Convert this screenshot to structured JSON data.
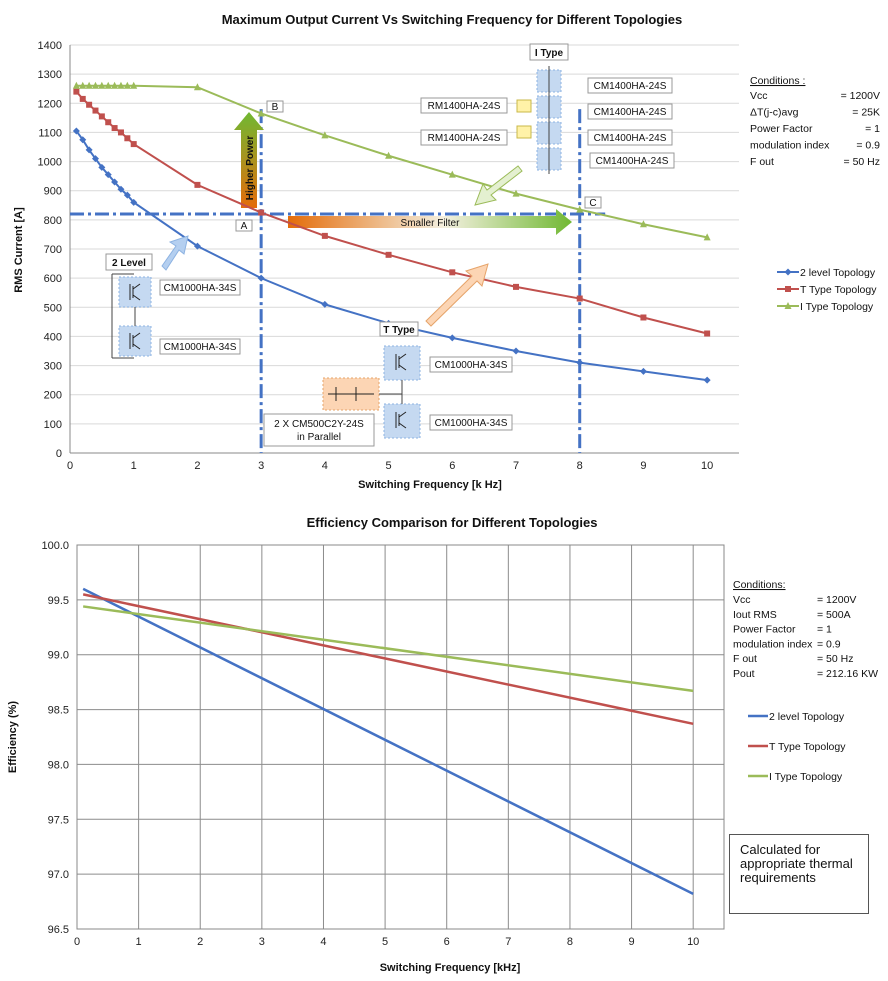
{
  "colors": {
    "two_level": "#4472C4",
    "t_type": "#C0504D",
    "i_type": "#9BBB59",
    "guide": "#4472C4"
  },
  "chart_data": [
    {
      "type": "line",
      "title": "Maximum Output Current Vs Switching Frequency for Different Topologies",
      "xlabel": "Switching Frequency [k Hz]",
      "ylabel": "RMS Current [A]",
      "xlim": [
        0,
        10.5
      ],
      "ylim": [
        0,
        1400
      ],
      "x_ticks": [
        0,
        1,
        2,
        3,
        4,
        5,
        6,
        7,
        8,
        9,
        10
      ],
      "y_ticks": [
        0,
        100,
        200,
        300,
        400,
        500,
        600,
        700,
        800,
        900,
        1000,
        1100,
        1200,
        1300,
        1400
      ],
      "grid": "horizontal",
      "legend_position": "right",
      "series": [
        {
          "name": "2 level Topology",
          "marker": "diamond",
          "x": [
            0.1,
            0.2,
            0.3,
            0.4,
            0.5,
            0.6,
            0.7,
            0.8,
            0.9,
            1,
            2,
            3,
            4,
            5,
            6,
            7,
            8,
            9,
            10
          ],
          "values": [
            1105,
            1075,
            1040,
            1010,
            980,
            955,
            930,
            905,
            885,
            860,
            710,
            600,
            510,
            445,
            395,
            350,
            310,
            280,
            250
          ]
        },
        {
          "name": "T Type Topology",
          "marker": "square",
          "x": [
            0.1,
            0.2,
            0.3,
            0.4,
            0.5,
            0.6,
            0.7,
            0.8,
            0.9,
            1,
            2,
            3,
            4,
            5,
            6,
            7,
            8,
            9,
            10
          ],
          "values": [
            1240,
            1215,
            1195,
            1175,
            1155,
            1135,
            1115,
            1100,
            1080,
            1060,
            920,
            825,
            745,
            680,
            620,
            570,
            530,
            465,
            410
          ]
        },
        {
          "name": "I Type Topology",
          "marker": "triangle",
          "x": [
            0.1,
            0.2,
            0.3,
            0.4,
            0.5,
            0.6,
            0.7,
            0.8,
            0.9,
            1,
            2,
            3,
            4,
            5,
            6,
            7,
            8,
            9,
            10
          ],
          "values": [
            1260,
            1260,
            1260,
            1260,
            1260,
            1260,
            1260,
            1260,
            1260,
            1260,
            1255,
            1165,
            1090,
            1020,
            955,
            890,
            835,
            785,
            740
          ]
        }
      ],
      "guide_lines": {
        "horizontal_y": 820,
        "vertical_x": [
          3,
          8
        ]
      },
      "point_labels": [
        "A",
        "B",
        "C"
      ],
      "arrow_labels": {
        "higher_power": "Higher Power",
        "smaller_filter": "Smaller Filter"
      },
      "conditions": {
        "title": "Conditions :",
        "rows": [
          [
            "Vcc",
            "= 1200V"
          ],
          [
            "ΔT(j-c)avg",
            "= 25K"
          ],
          [
            "Power Factor",
            "= 1"
          ],
          [
            "modulation index",
            "= 0.9"
          ],
          [
            "F out",
            "= 50 Hz"
          ]
        ]
      },
      "annotations": {
        "two_level_title": "2 Level",
        "two_level_top_module": "CM1000HA-34S",
        "two_level_bottom_module": "CM1000HA-34S",
        "t_type_title": "T Type",
        "t_type_top_module": "CM1000HA-34S",
        "t_type_bottom_module": "CM1000HA-34S",
        "t_type_parallel_line1": "2 X CM500C2Y-24S",
        "t_type_parallel_line2": "in Parallel",
        "i_type_title": "I Type",
        "i_type_modules": [
          "CM1400HA-24S",
          "CM1400HA-24S",
          "CM1400HA-24S",
          "CM1400HA-24S"
        ],
        "i_type_diodes": [
          "RM1400HA-24S",
          "RM1400HA-24S"
        ]
      }
    },
    {
      "type": "line",
      "title": "Efficiency Comparison for Different Topologies",
      "xlabel": "Switching Frequency [kHz]",
      "ylabel": "Efficiency (%)",
      "xlim": [
        0,
        10.5
      ],
      "ylim": [
        96.5,
        100.0
      ],
      "x_ticks": [
        0,
        1,
        2,
        3,
        4,
        5,
        6,
        7,
        8,
        9,
        10
      ],
      "y_ticks": [
        96.5,
        97.0,
        97.5,
        98.0,
        98.5,
        99.0,
        99.5,
        100.0
      ],
      "y_tick_labels": [
        "96.5",
        "97.0",
        "97.5",
        "98.0",
        "98.5",
        "99.0",
        "99.5",
        "100.0"
      ],
      "grid": "both",
      "legend_position": "right",
      "series": [
        {
          "name": "2 level Topology",
          "x": [
            0.1,
            10
          ],
          "values": [
            99.6,
            96.82
          ]
        },
        {
          "name": "T Type Topology",
          "x": [
            0.1,
            10
          ],
          "values": [
            99.55,
            98.37
          ]
        },
        {
          "name": "I Type Topology",
          "x": [
            0.1,
            10
          ],
          "values": [
            99.44,
            98.67
          ]
        }
      ],
      "conditions": {
        "title": "Conditions:",
        "rows": [
          [
            "Vcc",
            "= 1200V"
          ],
          [
            "Iout RMS",
            "= 500A"
          ],
          [
            "Power Factor",
            "= 1"
          ],
          [
            "modulation index",
            "= 0.9"
          ],
          [
            "F out",
            "= 50 Hz"
          ],
          [
            "Pout",
            "= 212.16  KW"
          ]
        ]
      },
      "note": "Calculated for appropriate thermal requirements"
    }
  ]
}
